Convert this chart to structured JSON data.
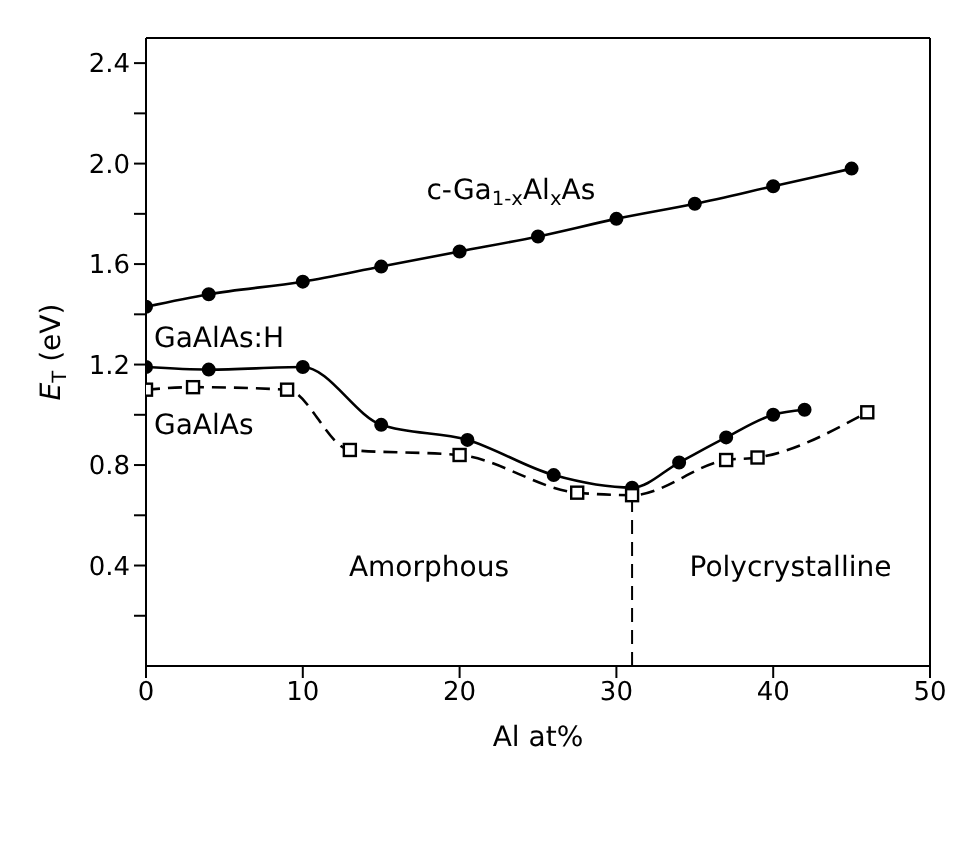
{
  "chart_data": {
    "type": "line",
    "xlabel": "Al at%",
    "ylabel": "E$_{T}$ (eV)",
    "xlim": [
      0,
      50
    ],
    "xticks": [
      0,
      10,
      20,
      30,
      40,
      50
    ],
    "ylim": [
      0,
      2.5
    ],
    "yticks": [
      {
        "value": 0.2,
        "label": null
      },
      0.4,
      {
        "value": 0.6,
        "label": null
      },
      0.8,
      {
        "value": 1.0,
        "label": null
      },
      1.2,
      {
        "value": 1.4,
        "label": null
      },
      1.6,
      {
        "value": 1.8,
        "label": null
      },
      {
        "value": 2,
        "label": "2.0"
      },
      {
        "value": 2.2,
        "label": null
      },
      2.4
    ],
    "series": [
      {
        "name": "c-Ga$_{1-x}$Al$_{x}$As",
        "color": "#000000",
        "marker": "circle",
        "line_style": "solid",
        "x": [
          0,
          4,
          10,
          15,
          20,
          25,
          30,
          35,
          40,
          45
        ],
        "values": [
          1.43,
          1.48,
          1.53,
          1.59,
          1.65,
          1.71,
          1.78,
          1.84,
          1.91,
          1.98
        ]
      },
      {
        "name": "GaAlAs:H",
        "color": "#000000",
        "marker": "circle",
        "line_style": "solid",
        "x": [
          0,
          4,
          10,
          15,
          20.5,
          26,
          31,
          34,
          37,
          40,
          42
        ],
        "values": [
          1.19,
          1.18,
          1.19,
          0.96,
          0.9,
          0.76,
          0.71,
          0.81,
          0.91,
          1.0,
          1.02
        ]
      },
      {
        "name": "GaAlAs",
        "color": "#000000",
        "marker": "square",
        "line_style": "dashed",
        "x": [
          0,
          3,
          9,
          13,
          20,
          27.5,
          31,
          37,
          39,
          46
        ],
        "values": [
          1.1,
          1.11,
          1.1,
          0.86,
          0.84,
          0.69,
          0.68,
          0.82,
          0.83,
          1.01
        ]
      }
    ],
    "ref_lines": [
      {
        "axis": "x",
        "value": 31,
        "line_style": "dashed",
        "color": "#000000"
      }
    ],
    "annotations": [
      "Amorphous",
      "Polycrystalline"
    ]
  }
}
